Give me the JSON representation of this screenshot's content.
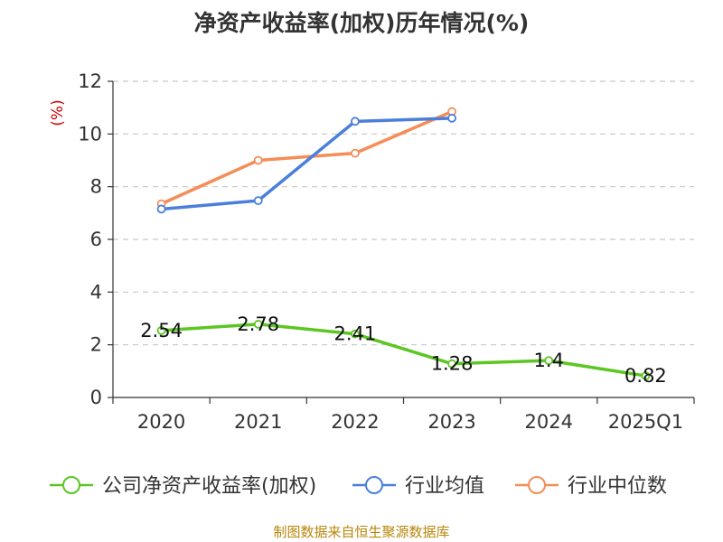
{
  "chart_data": {
    "type": "line",
    "title": "净资产收益率(加权)历年情况(%)",
    "ylabel": "(%)",
    "xlabel": "",
    "categories": [
      "2020",
      "2021",
      "2022",
      "2023",
      "2024",
      "2025Q1"
    ],
    "ylim": [
      0,
      12
    ],
    "yticks": [
      0,
      2,
      4,
      6,
      8,
      10,
      12
    ],
    "grid": true,
    "legend_position": "bottom",
    "series": [
      {
        "name": "公司净资产收益率(加权)",
        "color": "#5cc623",
        "values": [
          2.54,
          2.78,
          2.41,
          1.28,
          1.4,
          0.82
        ],
        "labels": [
          "2.54",
          "2.78",
          "2.41",
          "1.28",
          "1.4",
          "0.82"
        ]
      },
      {
        "name": "行业均值",
        "color": "#4b7fdc",
        "values": [
          7.15,
          7.47,
          10.48,
          10.6,
          null,
          null
        ]
      },
      {
        "name": "行业中位数",
        "color": "#f58d57",
        "values": [
          7.35,
          9.0,
          9.27,
          10.85,
          null,
          null
        ]
      }
    ]
  },
  "footer": {
    "source": "制图数据来自恒生聚源数据库"
  }
}
